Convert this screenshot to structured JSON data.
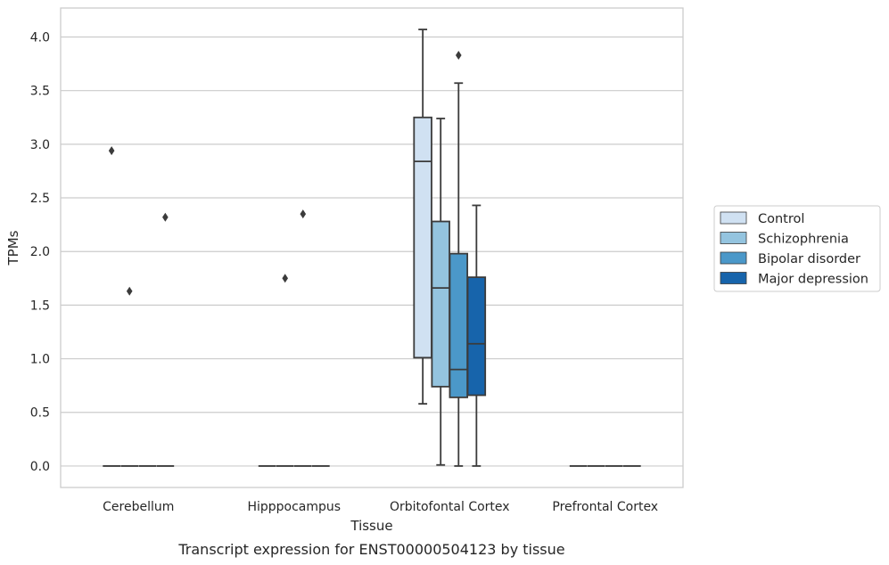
{
  "chart_data": {
    "type": "box",
    "xlabel": "Tissue",
    "ylabel": "TPMs",
    "caption": "Transcript expression for ENST00000504123 by tissue",
    "ylim": [
      -0.2,
      4.27
    ],
    "yticks": [
      0.0,
      0.5,
      1.0,
      1.5,
      2.0,
      2.5,
      3.0,
      3.5,
      4.0
    ],
    "ytick_labels": [
      "0.0",
      "0.5",
      "1.0",
      "1.5",
      "2.0",
      "2.5",
      "3.0",
      "3.5",
      "4.0"
    ],
    "grid": "horizontal",
    "categories": [
      "Cerebellum",
      "Hipppocampus",
      "Orbitofontal Cortex",
      "Prefrontal Cortex"
    ],
    "legend_position": "right",
    "series": [
      {
        "name": "Control",
        "color": "#d0e1f2",
        "boxes": [
          {
            "category": "Cerebellum",
            "whislo": 0.0,
            "q1": 0.0,
            "med": 0.0,
            "q3": 0.0,
            "whishi": 0.0,
            "fliers": [
              2.94
            ]
          },
          {
            "category": "Hipppocampus",
            "whislo": 0.0,
            "q1": 0.0,
            "med": 0.0,
            "q3": 0.0,
            "whishi": 0.0,
            "fliers": []
          },
          {
            "category": "Orbitofontal Cortex",
            "whislo": 0.58,
            "q1": 1.01,
            "med": 2.84,
            "q3": 3.25,
            "whishi": 4.07,
            "fliers": []
          },
          {
            "category": "Prefrontal Cortex",
            "whislo": 0.0,
            "q1": 0.0,
            "med": 0.0,
            "q3": 0.0,
            "whishi": 0.0,
            "fliers": []
          }
        ]
      },
      {
        "name": "Schizophrenia",
        "color": "#94c4df",
        "boxes": [
          {
            "category": "Cerebellum",
            "whislo": 0.0,
            "q1": 0.0,
            "med": 0.0,
            "q3": 0.0,
            "whishi": 0.0,
            "fliers": [
              1.63
            ]
          },
          {
            "category": "Hipppocampus",
            "whislo": 0.0,
            "q1": 0.0,
            "med": 0.0,
            "q3": 0.0,
            "whishi": 0.0,
            "fliers": [
              1.75
            ]
          },
          {
            "category": "Orbitofontal Cortex",
            "whislo": 0.01,
            "q1": 0.74,
            "med": 1.66,
            "q3": 2.28,
            "whishi": 3.24,
            "fliers": []
          },
          {
            "category": "Prefrontal Cortex",
            "whislo": 0.0,
            "q1": 0.0,
            "med": 0.0,
            "q3": 0.0,
            "whishi": 0.0,
            "fliers": []
          }
        ]
      },
      {
        "name": "Bipolar disorder",
        "color": "#4b98c9",
        "boxes": [
          {
            "category": "Cerebellum",
            "whislo": 0.0,
            "q1": 0.0,
            "med": 0.0,
            "q3": 0.0,
            "whishi": 0.0,
            "fliers": []
          },
          {
            "category": "Hipppocampus",
            "whislo": 0.0,
            "q1": 0.0,
            "med": 0.0,
            "q3": 0.0,
            "whishi": 0.0,
            "fliers": [
              2.35
            ]
          },
          {
            "category": "Orbitofontal Cortex",
            "whislo": 0.0,
            "q1": 0.64,
            "med": 0.9,
            "q3": 1.98,
            "whishi": 3.57,
            "fliers": [
              3.83
            ]
          },
          {
            "category": "Prefrontal Cortex",
            "whislo": 0.0,
            "q1": 0.0,
            "med": 0.0,
            "q3": 0.0,
            "whishi": 0.0,
            "fliers": []
          }
        ]
      },
      {
        "name": "Major depression",
        "color": "#1764ab",
        "boxes": [
          {
            "category": "Cerebellum",
            "whislo": 0.0,
            "q1": 0.0,
            "med": 0.0,
            "q3": 0.0,
            "whishi": 0.0,
            "fliers": [
              2.32
            ]
          },
          {
            "category": "Hipppocampus",
            "whislo": 0.0,
            "q1": 0.0,
            "med": 0.0,
            "q3": 0.0,
            "whishi": 0.0,
            "fliers": []
          },
          {
            "category": "Orbitofontal Cortex",
            "whislo": 0.0,
            "q1": 0.66,
            "med": 1.14,
            "q3": 1.76,
            "whishi": 2.43,
            "fliers": []
          },
          {
            "category": "Prefrontal Cortex",
            "whislo": 0.0,
            "q1": 0.0,
            "med": 0.0,
            "q3": 0.0,
            "whishi": 0.0,
            "fliers": []
          }
        ]
      }
    ]
  }
}
